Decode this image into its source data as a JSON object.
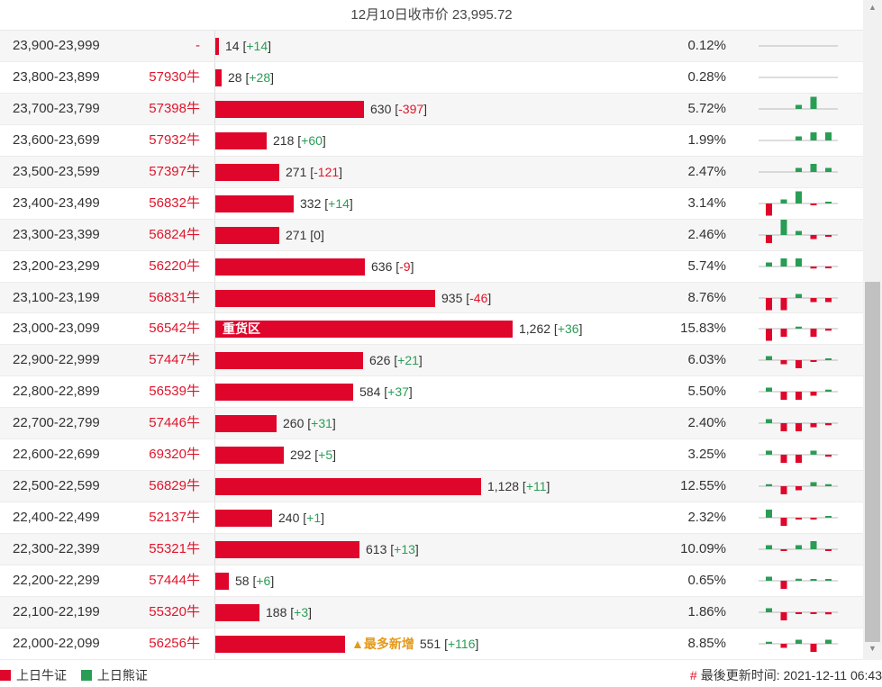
{
  "header": {
    "title": "12月10日收市价 23,995.72"
  },
  "bar_max_value": 1262,
  "colors": {
    "bull": "#e0062b",
    "bear": "#2a9d55",
    "text_red": "#e0152b",
    "text_green": "#2a9d55",
    "new_tag": "#e59a1a"
  },
  "rows": [
    {
      "range": "23,900-23,999",
      "cert": "-",
      "value": 14,
      "value_label": "14",
      "change": "+14",
      "pct": "0.12%",
      "spark": [
        0,
        0,
        0,
        0,
        0,
        3
      ]
    },
    {
      "range": "23,800-23,899",
      "cert": "57930牛",
      "value": 28,
      "value_label": "28",
      "change": "+28",
      "pct": "0.28%",
      "spark": [
        0,
        0,
        0,
        0,
        0,
        3
      ]
    },
    {
      "range": "23,700-23,799",
      "cert": "57398牛",
      "value": 630,
      "value_label": "630",
      "change": "-397",
      "pct": "5.72%",
      "spark": [
        0,
        0,
        1,
        3,
        0,
        -2
      ]
    },
    {
      "range": "23,600-23,699",
      "cert": "57932牛",
      "value": 218,
      "value_label": "218",
      "change": "+60",
      "pct": "1.99%",
      "spark": [
        0,
        0,
        1,
        2,
        2,
        1
      ]
    },
    {
      "range": "23,500-23,599",
      "cert": "57397牛",
      "value": 271,
      "value_label": "271",
      "change": "-121",
      "pct": "2.47%",
      "spark": [
        0,
        0,
        1,
        2,
        1,
        -2
      ]
    },
    {
      "range": "23,400-23,499",
      "cert": "56832牛",
      "value": 332,
      "value_label": "332",
      "change": "+14",
      "pct": "3.14%",
      "spark": [
        -3,
        1,
        3,
        -0.3,
        0.2,
        0.2
      ]
    },
    {
      "range": "23,300-23,399",
      "cert": "56824牛",
      "value": 271,
      "value_label": "271",
      "change": "0",
      "pct": "2.46%",
      "spark": [
        -2,
        4,
        1,
        -1,
        -0.3,
        -0.3
      ]
    },
    {
      "range": "23,200-23,299",
      "cert": "56220牛",
      "value": 636,
      "value_label": "636",
      "change": "-9",
      "pct": "5.74%",
      "spark": [
        1,
        2,
        2,
        -0.5,
        -0.3,
        -0.3
      ]
    },
    {
      "range": "23,100-23,199",
      "cert": "56831牛",
      "value": 935,
      "value_label": "935",
      "change": "-46",
      "pct": "8.76%",
      "spark": [
        -3,
        -3,
        1,
        -1,
        -1,
        -1
      ]
    },
    {
      "range": "23,000-23,099",
      "cert": "56542牛",
      "value": 1262,
      "value_label": "1,262",
      "change": "+36",
      "pct": "15.83%",
      "tag": "重货区",
      "spark": [
        -3,
        -2,
        0.5,
        -2,
        -0.5,
        0.5
      ]
    },
    {
      "range": "22,900-22,999",
      "cert": "57447牛",
      "value": 626,
      "value_label": "626",
      "change": "+21",
      "pct": "6.03%",
      "spark": [
        1,
        -1,
        -2,
        -0.3,
        0.2,
        0.2
      ]
    },
    {
      "range": "22,800-22,899",
      "cert": "56539牛",
      "value": 584,
      "value_label": "584",
      "change": "+37",
      "pct": "5.50%",
      "spark": [
        1,
        -2,
        -2,
        -1,
        0.5,
        0.5
      ]
    },
    {
      "range": "22,700-22,799",
      "cert": "57446牛",
      "value": 260,
      "value_label": "260",
      "change": "+31",
      "pct": "2.40%",
      "spark": [
        1,
        -2,
        -2,
        -1,
        -0.5,
        1
      ]
    },
    {
      "range": "22,600-22,699",
      "cert": "69320牛",
      "value": 292,
      "value_label": "292",
      "change": "+5",
      "pct": "3.25%",
      "spark": [
        1,
        -2,
        -2,
        1,
        -0.5,
        0.3
      ]
    },
    {
      "range": "22,500-22,599",
      "cert": "56829牛",
      "value": 1128,
      "value_label": "1,128",
      "change": "+11",
      "pct": "12.55%",
      "spark": [
        0.5,
        -2,
        -1,
        1,
        0.5,
        0.5
      ]
    },
    {
      "range": "22,400-22,499",
      "cert": "52137牛",
      "value": 240,
      "value_label": "240",
      "change": "+1",
      "pct": "2.32%",
      "spark": [
        2,
        -2,
        -0.3,
        -0.3,
        0.2,
        0.2
      ]
    },
    {
      "range": "22,300-22,399",
      "cert": "55321牛",
      "value": 613,
      "value_label": "613",
      "change": "+13",
      "pct": "10.09%",
      "spark": [
        1,
        -0.3,
        1,
        2,
        -0.3,
        0.2
      ]
    },
    {
      "range": "22,200-22,299",
      "cert": "57444牛",
      "value": 58,
      "value_label": "58",
      "change": "+6",
      "pct": "0.65%",
      "spark": [
        1,
        -2,
        0.5,
        0.3,
        0.3,
        0.5
      ]
    },
    {
      "range": "22,100-22,199",
      "cert": "55320牛",
      "value": 188,
      "value_label": "188",
      "change": "+3",
      "pct": "1.86%",
      "spark": [
        1,
        -2,
        -0.3,
        -0.3,
        -0.5,
        1
      ]
    },
    {
      "range": "22,000-22,099",
      "cert": "56256牛",
      "value": 551,
      "value_label": "551",
      "change": "+116",
      "pct": "8.85%",
      "tag_after": "▲最多新增",
      "spark": [
        0.5,
        -1,
        1,
        -2,
        1,
        0.3
      ]
    }
  ],
  "legend": {
    "bull": "上日牛证",
    "bear": "上日熊证"
  },
  "footer": {
    "hash": "#",
    "updated": "最後更新时间: 2021-12-11 06:43"
  }
}
